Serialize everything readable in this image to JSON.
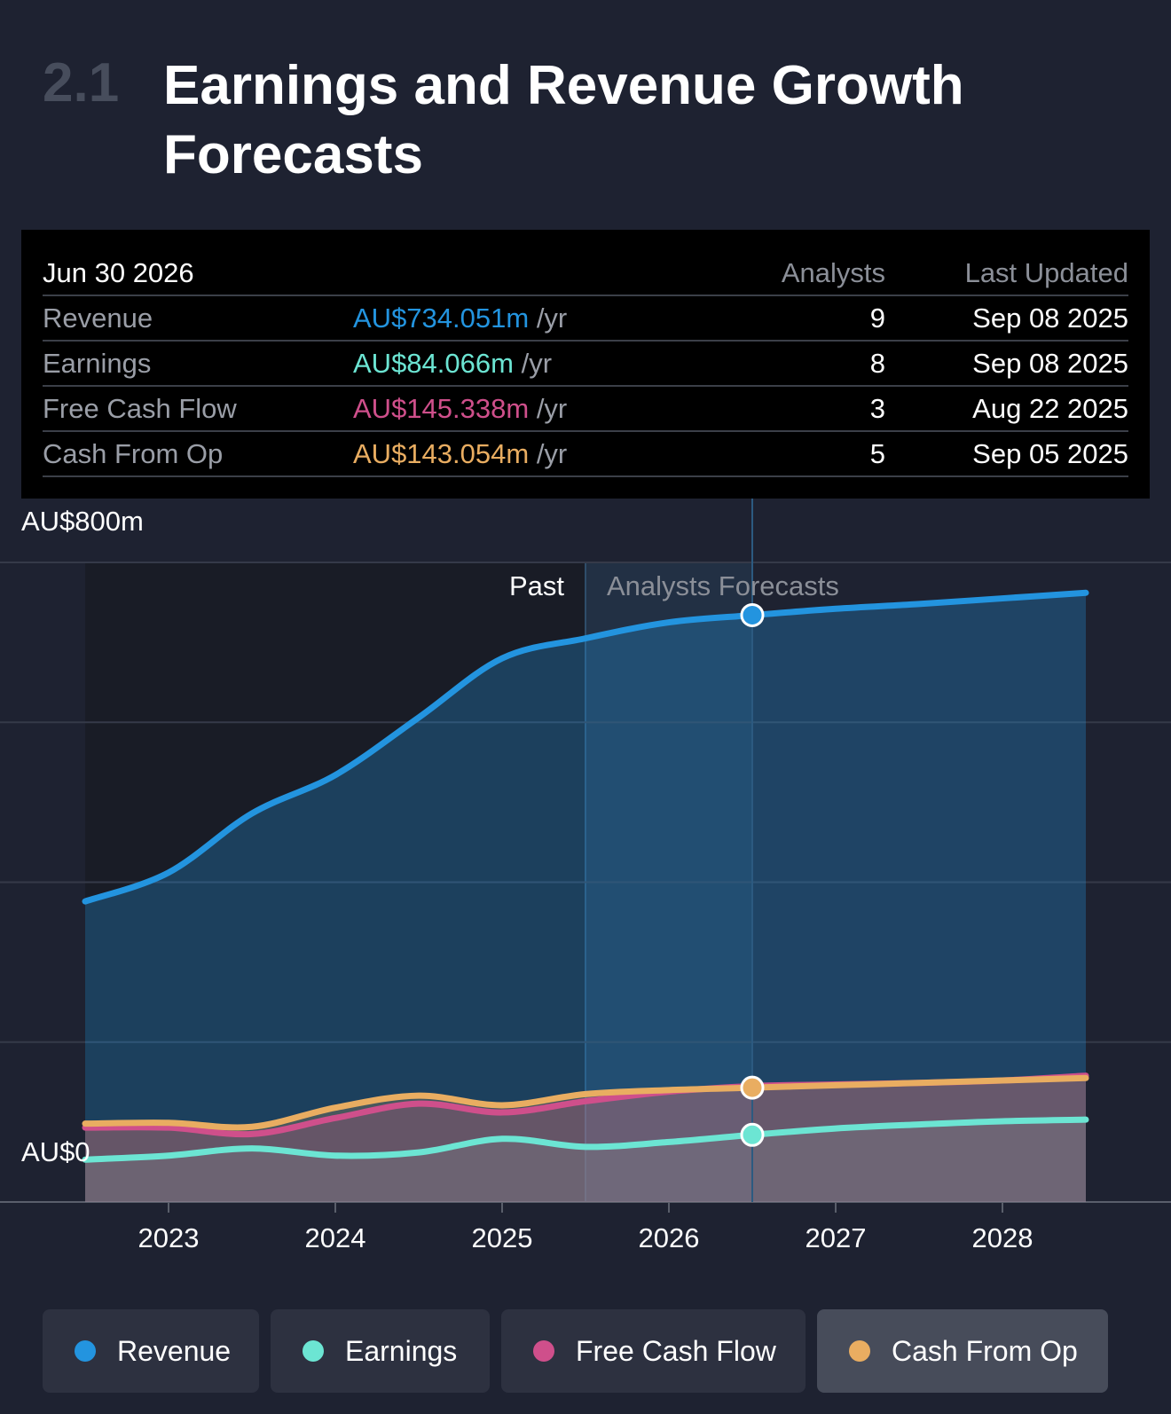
{
  "section": {
    "number": "2.1",
    "title": "Earnings and Revenue Growth Forecasts"
  },
  "tooltip": {
    "date": "Jun 30 2026",
    "analysts_header": "Analysts",
    "updated_header": "Last Updated",
    "rows": [
      {
        "label": "Revenue",
        "value": "AU$734.051m",
        "unit": "/yr",
        "analysts": "9",
        "updated": "Sep 08 2025",
        "color": "#2394df"
      },
      {
        "label": "Earnings",
        "value": "AU$84.066m",
        "unit": "/yr",
        "analysts": "8",
        "updated": "Sep 08 2025",
        "color": "#6ce5d3"
      },
      {
        "label": "Free Cash Flow",
        "value": "AU$145.338m",
        "unit": "/yr",
        "analysts": "3",
        "updated": "Aug 22 2025",
        "color": "#cf4f8b"
      },
      {
        "label": "Cash From Op",
        "value": "AU$143.054m",
        "unit": "/yr",
        "analysts": "5",
        "updated": "Sep 05 2025",
        "color": "#e9ad61"
      }
    ]
  },
  "chart_data": {
    "type": "area",
    "title": "Earnings and Revenue Growth Forecasts",
    "ylabel_top": "AU$800m",
    "ylabel_bottom": "AU$0",
    "ylim": [
      0,
      800
    ],
    "xlim": [
      2022.5,
      2028.5
    ],
    "past_label": "Past",
    "forecast_label": "Analysts Forecasts",
    "forecast_start": 2025.5,
    "selected_x": 2026.5,
    "x_ticks": [
      "2023",
      "2024",
      "2025",
      "2026",
      "2027",
      "2028"
    ],
    "series": [
      {
        "name": "Revenue",
        "color": "#2394df",
        "x": [
          2022.5,
          2023,
          2023.5,
          2024,
          2024.5,
          2025,
          2025.5,
          2026,
          2026.5,
          2027,
          2027.5,
          2028,
          2028.5
        ],
        "y": [
          376,
          412,
          486,
          534,
          606,
          680,
          705,
          725,
          734,
          742,
          748,
          755,
          762
        ]
      },
      {
        "name": "Earnings",
        "color": "#6ce5d3",
        "x": [
          2022.5,
          2023,
          2023.5,
          2024,
          2024.5,
          2025,
          2025.5,
          2026,
          2026.5,
          2027,
          2027.5,
          2028,
          2028.5
        ],
        "y": [
          53,
          58,
          67,
          58,
          62,
          79,
          69,
          75,
          84,
          92,
          97,
          101,
          103
        ]
      },
      {
        "name": "Free Cash Flow",
        "color": "#cf4f8b",
        "x": [
          2022.5,
          2023,
          2023.5,
          2024,
          2024.5,
          2025,
          2025.5,
          2026,
          2026.5,
          2027,
          2027.5,
          2028,
          2028.5
        ],
        "y": [
          93,
          93,
          85,
          105,
          123,
          112,
          126,
          138,
          145,
          147,
          149,
          152,
          158
        ]
      },
      {
        "name": "Cash From Op",
        "color": "#e9ad61",
        "x": [
          2022.5,
          2023,
          2023.5,
          2024,
          2024.5,
          2025,
          2025.5,
          2026,
          2026.5,
          2027,
          2027.5,
          2028,
          2028.5
        ],
        "y": [
          98,
          99,
          94,
          118,
          133,
          121,
          135,
          140,
          143,
          146,
          149,
          152,
          155
        ]
      }
    ]
  },
  "legend": [
    {
      "label": "Revenue",
      "color": "#2394df"
    },
    {
      "label": "Earnings",
      "color": "#6ce5d3"
    },
    {
      "label": "Free Cash Flow",
      "color": "#cf4f8b"
    },
    {
      "label": "Cash From Op",
      "color": "#e9ad61"
    }
  ]
}
